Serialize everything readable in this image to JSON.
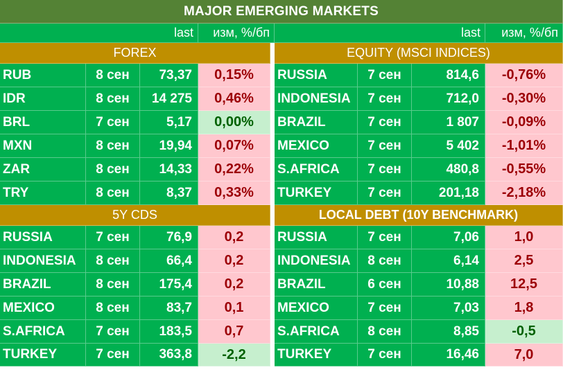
{
  "title": "MAJOR   EMERGING MARKETS",
  "subheader": {
    "last": "last",
    "change": "изм, %/бп"
  },
  "sections": {
    "forex": "FOREX",
    "equity": "EQUITY (MSCI INDICES)",
    "cds": "5Y CDS",
    "local_debt": "LOCAL DEBT (10Y BENCHMARK)"
  },
  "colors": {
    "title_bg": "#548235",
    "body_bg": "#00b050",
    "section_bg": "#bf8f00",
    "negative_fill": "#ffc7ce",
    "negative_text": "#9c0006",
    "positive_fill": "#c6efce",
    "positive_text": "#006100"
  },
  "forex": [
    {
      "name": "RUB",
      "date": "8 сен",
      "last": "73,37",
      "change": "0,15%",
      "status": "neg"
    },
    {
      "name": "IDR",
      "date": "8 сен",
      "last": "14 275",
      "change": "0,46%",
      "status": "neg"
    },
    {
      "name": "BRL",
      "date": "7 сен",
      "last": "5,17",
      "change": "0,00%",
      "status": "pos"
    },
    {
      "name": "MXN",
      "date": "8 сен",
      "last": "19,94",
      "change": "0,07%",
      "status": "neg"
    },
    {
      "name": "ZAR",
      "date": "8 сен",
      "last": "14,33",
      "change": "0,22%",
      "status": "neg"
    },
    {
      "name": "TRY",
      "date": "8 сен",
      "last": "8,37",
      "change": "0,33%",
      "status": "neg"
    }
  ],
  "equity": [
    {
      "name": "RUSSIA",
      "date": "7 сен",
      "last": "814,6",
      "change": "-0,76%",
      "status": "neg"
    },
    {
      "name": "INDONESIA",
      "date": "7 сен",
      "last": "712,0",
      "change": "-0,30%",
      "status": "neg"
    },
    {
      "name": "BRAZIL",
      "date": "7 сен",
      "last": "1 807",
      "change": "-0,09%",
      "status": "neg"
    },
    {
      "name": "MEXICO",
      "date": "7 сен",
      "last": "5 402",
      "change": "-1,01%",
      "status": "neg"
    },
    {
      "name": "S.AFRICA",
      "date": "7 сен",
      "last": "480,8",
      "change": "-0,55%",
      "status": "neg"
    },
    {
      "name": "TURKEY",
      "date": "7 сен",
      "last": "201,18",
      "change": "-2,18%",
      "status": "neg"
    }
  ],
  "cds": [
    {
      "name": "RUSSIA",
      "date": "7 сен",
      "last": "76,9",
      "change": "0,2",
      "status": "neg"
    },
    {
      "name": "INDONESIA",
      "date": "8 сен",
      "last": "66,4",
      "change": "0,2",
      "status": "neg"
    },
    {
      "name": "BRAZIL",
      "date": "8 сен",
      "last": "175,4",
      "change": "0,2",
      "status": "neg"
    },
    {
      "name": "MEXICO",
      "date": "8 сен",
      "last": "83,7",
      "change": "0,1",
      "status": "neg"
    },
    {
      "name": "S.AFRICA",
      "date": "7 сен",
      "last": "183,5",
      "change": "0,7",
      "status": "neg"
    },
    {
      "name": "TURKEY",
      "date": "7 сен",
      "last": "363,8",
      "change": "-2,2",
      "status": "pos"
    }
  ],
  "local_debt": [
    {
      "name": "RUSSIA",
      "date": "7 сен",
      "last": "7,06",
      "change": "1,0",
      "status": "neg"
    },
    {
      "name": "INDONESIA",
      "date": "8 сен",
      "last": "6,14",
      "change": "2,5",
      "status": "neg"
    },
    {
      "name": "BRAZIL",
      "date": "6 сен",
      "last": "10,88",
      "change": "12,5",
      "status": "neg"
    },
    {
      "name": "MEXICO",
      "date": "7 сен",
      "last": "7,03",
      "change": "1,8",
      "status": "neg"
    },
    {
      "name": "S.AFRICA",
      "date": "8 сен",
      "last": "8,85",
      "change": "-0,5",
      "status": "pos"
    },
    {
      "name": "TURKEY",
      "date": "7 сен",
      "last": "16,46",
      "change": "7,0",
      "status": "neg"
    }
  ]
}
